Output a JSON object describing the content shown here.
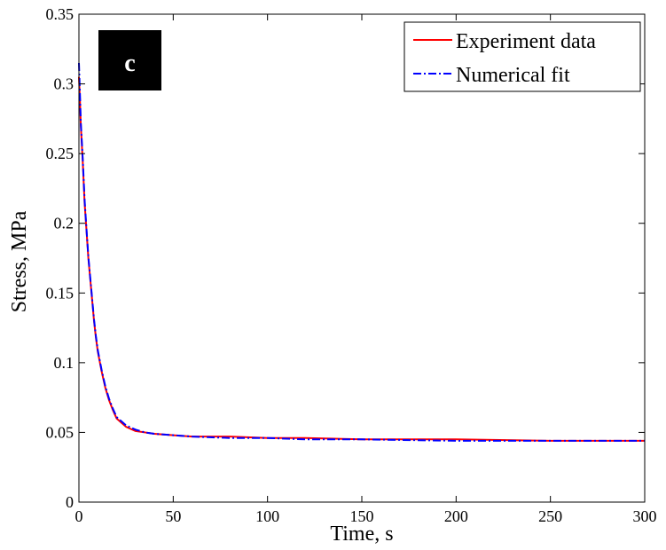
{
  "chart_data": {
    "type": "line",
    "xlabel": "Time, s",
    "ylabel": "Stress, MPa",
    "xlim": [
      0,
      300
    ],
    "ylim": [
      0,
      0.35
    ],
    "xticks": [
      "0",
      "50",
      "100",
      "150",
      "200",
      "250",
      "300"
    ],
    "yticks": [
      "0",
      "0.05",
      "0.1",
      "0.15",
      "0.2",
      "0.25",
      "0.3",
      "0.35"
    ],
    "grid": false,
    "legend_position": "top-right",
    "panel_label": "c",
    "series": [
      {
        "name": "Experiment data",
        "color": "#ff0000",
        "style": "solid",
        "x": [
          0,
          0.5,
          1,
          2,
          3,
          4,
          5,
          6,
          7,
          8,
          9,
          10,
          12,
          14,
          16,
          18,
          20,
          25,
          30,
          35,
          40,
          50,
          60,
          80,
          100,
          120,
          150,
          200,
          250,
          300
        ],
        "y": [
          0.305,
          0.29,
          0.27,
          0.245,
          0.215,
          0.195,
          0.175,
          0.16,
          0.145,
          0.13,
          0.118,
          0.108,
          0.094,
          0.082,
          0.073,
          0.066,
          0.06,
          0.054,
          0.051,
          0.05,
          0.049,
          0.048,
          0.047,
          0.047,
          0.046,
          0.046,
          0.045,
          0.045,
          0.044,
          0.044
        ]
      },
      {
        "name": "Numerical fit",
        "color": "#0000ff",
        "style": "dashdot",
        "x": [
          0,
          0.5,
          1,
          2,
          3,
          4,
          5,
          6,
          7,
          8,
          9,
          10,
          12,
          14,
          16,
          18,
          20,
          25,
          30,
          35,
          40,
          50,
          60,
          80,
          100,
          120,
          150,
          200,
          250,
          300
        ],
        "y": [
          0.315,
          0.295,
          0.272,
          0.247,
          0.217,
          0.196,
          0.176,
          0.161,
          0.146,
          0.131,
          0.119,
          0.109,
          0.095,
          0.083,
          0.074,
          0.067,
          0.061,
          0.055,
          0.052,
          0.05,
          0.049,
          0.048,
          0.047,
          0.046,
          0.046,
          0.045,
          0.045,
          0.044,
          0.044,
          0.044
        ]
      }
    ]
  }
}
